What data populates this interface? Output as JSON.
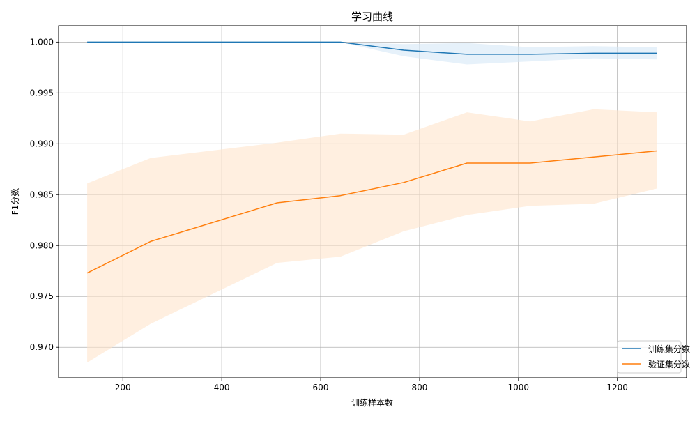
{
  "chart_data": {
    "type": "line",
    "title": "学习曲线",
    "xlabel": "训练样本数",
    "ylabel": "F1分数",
    "xlim": [
      70,
      1340
    ],
    "ylim": [
      0.967,
      1.0016
    ],
    "x_ticks": [
      200,
      400,
      600,
      800,
      1000,
      1200
    ],
    "y_ticks": [
      0.97,
      0.975,
      0.98,
      0.985,
      0.99,
      0.995,
      1.0
    ],
    "x_tick_labels": [
      "200",
      "400",
      "600",
      "800",
      "1000",
      "1200"
    ],
    "y_tick_labels": [
      "0.970",
      "0.975",
      "0.980",
      "0.985",
      "0.990",
      "0.995",
      "1.000"
    ],
    "grid": true,
    "legend_position": "bottom-right",
    "x": [
      128,
      256,
      512,
      640,
      768,
      896,
      1024,
      1152,
      1280
    ],
    "series": [
      {
        "name": "训练集分数",
        "color": "#1f77b4",
        "band_color": "#d6e8f6",
        "values": [
          1.0,
          1.0,
          1.0,
          1.0,
          0.9992,
          0.9988,
          0.9988,
          0.9989,
          0.9989
        ],
        "lower": [
          1.0,
          1.0,
          1.0,
          1.0,
          0.9986,
          0.9978,
          0.9981,
          0.9984,
          0.9983
        ],
        "upper": [
          1.0,
          1.0,
          1.0,
          1.0,
          0.9998,
          0.9999,
          0.9995,
          0.9996,
          0.9995
        ]
      },
      {
        "name": "验证集分数",
        "color": "#ff7f0e",
        "band_color": "#ffe4cc",
        "values": [
          0.9773,
          0.9804,
          0.9842,
          0.9849,
          0.9862,
          0.9881,
          0.9881,
          0.9887,
          0.9893
        ],
        "lower": [
          0.9685,
          0.9723,
          0.9783,
          0.9789,
          0.9814,
          0.983,
          0.9839,
          0.9841,
          0.9856
        ],
        "upper": [
          0.9861,
          0.9886,
          0.9901,
          0.991,
          0.9909,
          0.9931,
          0.9922,
          0.9934,
          0.9931
        ]
      }
    ]
  }
}
